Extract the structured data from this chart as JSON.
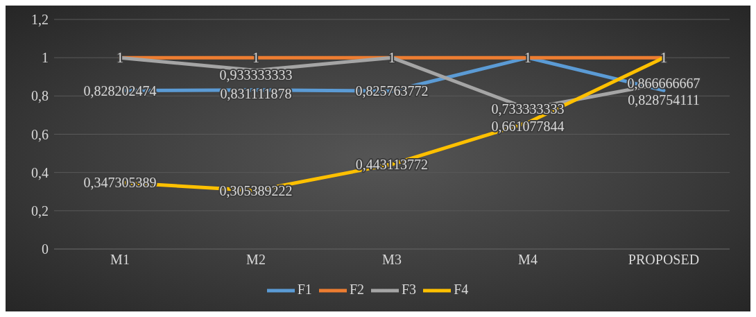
{
  "chart_data": {
    "type": "line",
    "categories": [
      "M1",
      "M2",
      "M3",
      "M4",
      "PROPOSED"
    ],
    "series": [
      {
        "name": "F1",
        "color": "#5b9bd5",
        "values": [
          0.828202474,
          0.831111878,
          0.825763772,
          1,
          0.828754111
        ],
        "value_labels": [
          "0,828202474",
          "0,831111878",
          "0,825763772",
          null,
          "0,828754111"
        ]
      },
      {
        "name": "F2",
        "color": "#ed7d31",
        "values": [
          1,
          1,
          1,
          1,
          1
        ],
        "value_labels": [
          "1",
          "1",
          "1",
          "1",
          "1"
        ]
      },
      {
        "name": "F3",
        "color": "#a5a5a5",
        "values": [
          1,
          0.933333333,
          1,
          0.733333333,
          0.866666667
        ],
        "value_labels": [
          null,
          "0,933333333",
          null,
          "0,733333333",
          "0,866666667"
        ]
      },
      {
        "name": "F4",
        "color": "#ffc000",
        "values": [
          0.347305389,
          0.305389222,
          0.443113772,
          0.661077844,
          1
        ],
        "value_labels": [
          "0,347305389",
          "0,305389222",
          "0,443113772",
          "0,661077844",
          null
        ]
      }
    ],
    "ylim": [
      0,
      1.2
    ],
    "yticks": [
      0,
      {
        "value": 0.2,
        "label": "0,2"
      },
      {
        "value": 0.4,
        "label": "0,4"
      },
      {
        "value": 0.6,
        "label": "0,6"
      },
      {
        "value": 0.8,
        "label": "0,8"
      },
      1,
      {
        "value": 1.2,
        "label": "1,2"
      }
    ],
    "grid": "y",
    "legend": "bottom",
    "marker": "none",
    "line_style": "solid"
  }
}
